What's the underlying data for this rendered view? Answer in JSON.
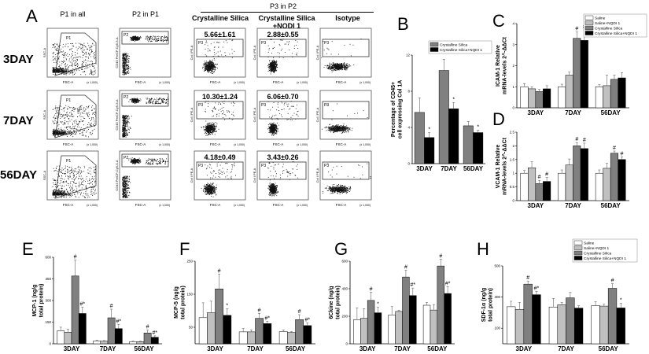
{
  "panel_labels": {
    "A": "A",
    "B": "B",
    "C": "C",
    "D": "D",
    "E": "E",
    "F": "F",
    "G": "G",
    "H": "H"
  },
  "flow": {
    "column_headers": [
      "P1 in all",
      "P2 in P1",
      "Crystalline Silica",
      "Crystalline Silica\n+NQDI 1",
      "Isotype"
    ],
    "group_header": "P3 in P2",
    "rows": [
      "3DAY",
      "7DAY",
      "56DAY"
    ],
    "percentages": [
      [
        "5.66±1.61",
        "2.88±0.55"
      ],
      [
        "10.30±1.24",
        "6.06±0.70"
      ],
      [
        "4.18±0.49",
        "3.43±0.26"
      ]
    ],
    "gates": [
      "P1",
      "P2",
      "P3"
    ],
    "axis_labels": {
      "x": "FSC-A",
      "y1": "SSC-A",
      "y2": "CD45 PerCP-Cy5-5-A",
      "y3": "Col I PE-A",
      "scale": "(x 1,000)"
    }
  },
  "chart_data": [
    {
      "id": "B",
      "type": "bar",
      "title": "",
      "ylabel": "Percentage of CD45+ cell expressing Col 1A",
      "xlabel": "",
      "categories": [
        "3DAY",
        "7DAY",
        "56DAY"
      ],
      "ylim": [
        0,
        12
      ],
      "yticks": [
        0,
        4,
        8,
        12
      ],
      "legend": "top-right",
      "series": [
        {
          "name": "Crystalline Silica",
          "color": "#808080",
          "values": [
            5.66,
            10.3,
            4.18
          ],
          "errors": [
            1.61,
            1.24,
            0.49
          ],
          "marks": [
            "",
            "",
            ""
          ]
        },
        {
          "name": "Crystalline Silica+NQDI 1",
          "color": "#000000",
          "values": [
            2.88,
            6.06,
            3.43
          ],
          "errors": [
            0.55,
            0.7,
            0.26
          ],
          "marks": [
            "*",
            "*",
            "*"
          ]
        }
      ]
    },
    {
      "id": "C",
      "type": "bar",
      "ylabel": "ICAM-1 Relative mRNA-levels 2^-ΔΔCt",
      "xlabel": "",
      "categories": [
        "3DAY",
        "7DAY",
        "56DAY"
      ],
      "ylim": [
        0,
        4
      ],
      "yticks": [
        0,
        1,
        2,
        3,
        4
      ],
      "legend": "top-right",
      "series": [
        {
          "name": "Saline",
          "color": "#ffffff",
          "values": [
            1.0,
            1.0,
            1.0
          ],
          "errors": [
            0.15,
            0.12,
            0.1
          ],
          "marks": [
            "",
            "",
            ""
          ]
        },
        {
          "name": "Saline+NQDI 1",
          "color": "#c0c0c0",
          "values": [
            0.9,
            1.55,
            1.05
          ],
          "errors": [
            0.1,
            0.15,
            0.5
          ],
          "marks": [
            "",
            "",
            ""
          ]
        },
        {
          "name": "Crystalline Silica",
          "color": "#808080",
          "values": [
            0.77,
            3.3,
            1.35
          ],
          "errors": [
            0.1,
            0.3,
            0.2
          ],
          "marks": [
            "",
            "#",
            ""
          ]
        },
        {
          "name": "Crystalline Silica+NQDI 1",
          "color": "#000000",
          "values": [
            0.9,
            3.2,
            1.42
          ],
          "errors": [
            0.15,
            0.5,
            0.25
          ],
          "marks": [
            "",
            "#",
            ""
          ]
        }
      ]
    },
    {
      "id": "D",
      "type": "bar",
      "ylabel": "VCAM-1 Relative mRNA-levels 2^-ΔΔCt",
      "xlabel": "",
      "categories": [
        "3DAY",
        "7DAY",
        "56DAY"
      ],
      "ylim": [
        0,
        2.5
      ],
      "yticks": [
        0,
        0.5,
        1.0,
        1.5,
        2.0,
        2.5
      ],
      "legend": "none",
      "series": [
        {
          "name": "Saline",
          "color": "#ffffff",
          "values": [
            1.0,
            1.0,
            1.0
          ],
          "errors": [
            0.1,
            0.12,
            0.12
          ],
          "marks": [
            "",
            "",
            ""
          ]
        },
        {
          "name": "Saline+NQDI 1",
          "color": "#c0c0c0",
          "values": [
            1.2,
            1.3,
            1.18
          ],
          "errors": [
            0.22,
            0.22,
            0.18
          ],
          "marks": [
            "",
            "",
            ""
          ]
        },
        {
          "name": "Crystalline Silica",
          "color": "#808080",
          "values": [
            0.62,
            2.0,
            1.73
          ],
          "errors": [
            0.12,
            0.12,
            0.08
          ],
          "marks": [
            "#",
            "#",
            "#"
          ]
        },
        {
          "name": "Crystalline Silica+NQDI 1",
          "color": "#000000",
          "values": [
            0.7,
            1.9,
            1.5
          ],
          "errors": [
            0.15,
            0.2,
            0.1
          ],
          "marks": [
            "#",
            "#",
            "#"
          ]
        }
      ]
    },
    {
      "id": "E",
      "type": "bar",
      "ylabel": "MCP-1 (ng/g total protein)",
      "xlabel": "",
      "categories": [
        "3DAY",
        "7DAY",
        "56DAY"
      ],
      "ylim": [
        0,
        600
      ],
      "yticks": [
        0,
        150,
        300,
        450,
        600
      ],
      "legend": "none",
      "series": [
        {
          "name": "Saline",
          "color": "#ffffff",
          "values": [
            90,
            20,
            15
          ],
          "errors": [
            25,
            5,
            4
          ],
          "marks": [
            "",
            "",
            ""
          ]
        },
        {
          "name": "Saline+NQDI 1",
          "color": "#c0c0c0",
          "values": [
            80,
            18,
            15
          ],
          "errors": [
            20,
            4,
            3
          ],
          "marks": [
            "",
            "",
            ""
          ]
        },
        {
          "name": "Crystalline Silica",
          "color": "#808080",
          "values": [
            470,
            180,
            75
          ],
          "errors": [
            110,
            60,
            20
          ],
          "marks": [
            "#",
            "#",
            "#"
          ]
        },
        {
          "name": "Crystalline Silica+NQDI 1",
          "color": "#000000",
          "values": [
            210,
            105,
            45
          ],
          "errors": [
            45,
            30,
            10
          ],
          "marks": [
            "#*",
            "#*",
            "#*"
          ]
        }
      ]
    },
    {
      "id": "F",
      "type": "bar",
      "ylabel": "MCP-5 (ng/g total protein)",
      "xlabel": "",
      "categories": [
        "3DAY",
        "7DAY",
        "56DAY"
      ],
      "ylim": [
        0,
        250
      ],
      "yticks": [
        50,
        150,
        250
      ],
      "legend": "none",
      "series": [
        {
          "name": "Saline",
          "color": "#ffffff",
          "values": [
            79,
            36,
            37
          ],
          "errors": [
            45,
            10,
            5
          ],
          "marks": [
            "",
            "",
            ""
          ]
        },
        {
          "name": "Saline+NQDI 1",
          "color": "#c0c0c0",
          "values": [
            94,
            36,
            34
          ],
          "errors": [
            35,
            6,
            3
          ],
          "marks": [
            "",
            "",
            ""
          ]
        },
        {
          "name": "Crystalline Silica",
          "color": "#808080",
          "values": [
            166,
            77,
            73
          ],
          "errors": [
            45,
            15,
            15
          ],
          "marks": [
            "#",
            "#",
            "#"
          ]
        },
        {
          "name": "Crystalline Silica+NQDI 1",
          "color": "#000000",
          "values": [
            86,
            61,
            55
          ],
          "errors": [
            20,
            7,
            8
          ],
          "marks": [
            "*",
            "#*",
            "#*"
          ]
        }
      ]
    },
    {
      "id": "G",
      "type": "bar",
      "ylabel": "6Ckine (ng/g total protein)",
      "xlabel": "",
      "categories": [
        "3DAY",
        "7DAY",
        "56DAY"
      ],
      "ylim": [
        0,
        600
      ],
      "yticks": [
        0,
        200,
        400,
        600
      ],
      "legend": "none",
      "series": [
        {
          "name": "Saline",
          "color": "#ffffff",
          "values": [
            175,
            210,
            280
          ],
          "errors": [
            85,
            60,
            20
          ],
          "marks": [
            "",
            "",
            ""
          ]
        },
        {
          "name": "Saline+NQDI 1",
          "color": "#c0c0c0",
          "values": [
            185,
            235,
            245
          ],
          "errors": [
            70,
            8,
            40
          ],
          "marks": [
            "",
            "",
            ""
          ]
        },
        {
          "name": "Crystalline Silica",
          "color": "#808080",
          "values": [
            315,
            485,
            565
          ],
          "errors": [
            60,
            50,
            50
          ],
          "marks": [
            "#",
            "#",
            "#"
          ]
        },
        {
          "name": "Crystalline Silica+NQDI 1",
          "color": "#000000",
          "values": [
            225,
            350,
            365
          ],
          "errors": [
            40,
            55,
            50
          ],
          "marks": [
            "*",
            "#*",
            "#*"
          ]
        }
      ]
    },
    {
      "id": "H",
      "type": "bar",
      "ylabel": "SDF-1α (ng/g total protein)",
      "xlabel": "",
      "categories": [
        "3DAY",
        "7DAY",
        "56DAY"
      ],
      "ylim": [
        0,
        500
      ],
      "yticks": [
        100,
        300,
        500
      ],
      "legend": "top-right",
      "series": [
        {
          "name": "Saline",
          "color": "#ffffff",
          "values": [
            238,
            236,
            245
          ],
          "errors": [
            35,
            55,
            25
          ],
          "marks": [
            "",
            "",
            ""
          ]
        },
        {
          "name": "Saline+NQDI 1",
          "color": "#c0c0c0",
          "values": [
            221,
            250,
            242
          ],
          "errors": [
            45,
            15,
            12
          ],
          "marks": [
            "",
            "",
            ""
          ]
        },
        {
          "name": "Crystalline Silica",
          "color": "#808080",
          "values": [
            383,
            295,
            356
          ],
          "errors": [
            20,
            35,
            30
          ],
          "marks": [
            "#",
            "",
            "#"
          ]
        },
        {
          "name": "Crystalline Silica+NQDI 1",
          "color": "#000000",
          "values": [
            315,
            229,
            230
          ],
          "errors": [
            22,
            15,
            30
          ],
          "marks": [
            "#*",
            "",
            "*"
          ]
        }
      ]
    }
  ]
}
